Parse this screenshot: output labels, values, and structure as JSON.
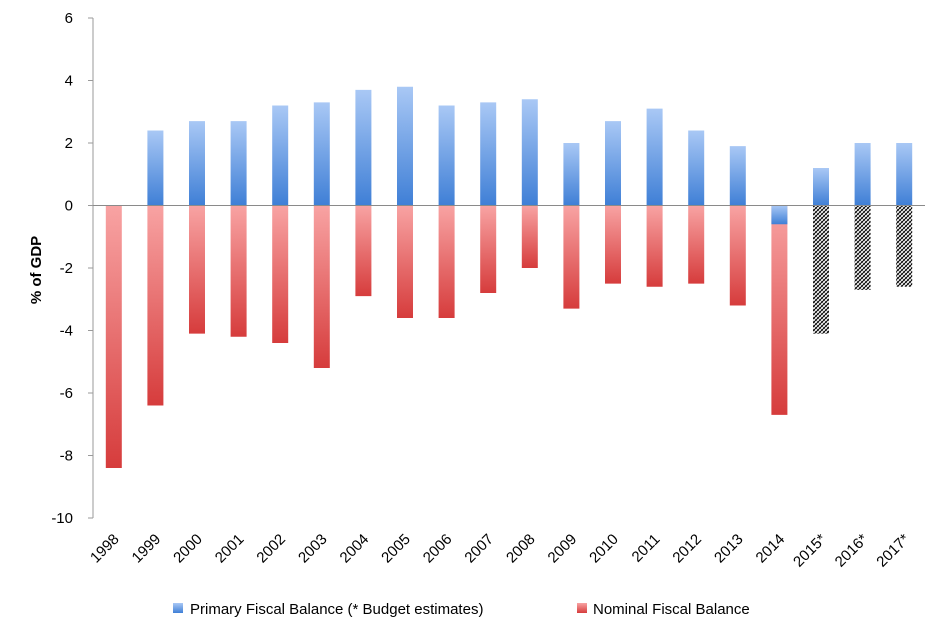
{
  "chart_data": {
    "type": "bar",
    "title": "",
    "xlabel": "",
    "ylabel": "% of GDP",
    "ylim": [
      -10,
      6
    ],
    "yticks": [
      -10,
      -8,
      -6,
      -4,
      -2,
      0,
      2,
      4,
      6
    ],
    "grid": false,
    "legend_position": "bottom",
    "categories": [
      "1998",
      "1999",
      "2000",
      "2001",
      "2002",
      "2003",
      "2004",
      "2005",
      "2006",
      "2007",
      "2008",
      "2009",
      "2010",
      "2011",
      "2012",
      "2013",
      "2014",
      "2015*",
      "2016*",
      "2017*"
    ],
    "series": [
      {
        "name": "Primary Fiscal Balance (* Budget estimates)",
        "color_top": "#a9c8f5",
        "color_bottom": "#3f7fd6",
        "values": [
          0,
          2.4,
          2.7,
          2.7,
          3.2,
          3.3,
          3.7,
          3.8,
          3.2,
          3.3,
          3.4,
          2.0,
          2.7,
          3.1,
          2.4,
          1.9,
          -0.6,
          1.2,
          2.0,
          2.0
        ]
      },
      {
        "name": "Nominal Fiscal Balance",
        "color_top": "#f8a3a3",
        "color_bottom": "#d63c3c",
        "pattern_categories": [
          "2015*",
          "2016*",
          "2017*"
        ],
        "values": [
          -8.4,
          -6.4,
          -4.1,
          -4.2,
          -4.4,
          -5.2,
          -2.9,
          -3.6,
          -3.6,
          -2.8,
          -2.0,
          -3.3,
          -2.5,
          -2.6,
          -2.5,
          -3.2,
          -6.7,
          -4.1,
          -2.7,
          -2.6
        ]
      }
    ]
  }
}
